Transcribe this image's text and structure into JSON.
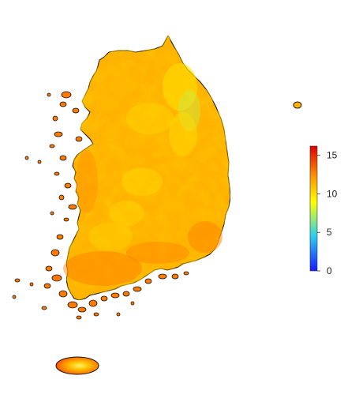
{
  "legend": {
    "ticks": [
      {
        "value": 15,
        "label": "15"
      },
      {
        "value": 10,
        "label": "10"
      },
      {
        "value": 5,
        "label": "5"
      },
      {
        "value": 0,
        "label": "0"
      }
    ],
    "min": 0,
    "max": 16.2,
    "colors": [
      "#1a1aff",
      "#2ad0f0",
      "#ffff00",
      "#ff9900",
      "#dd0000"
    ]
  },
  "map": {
    "land_color": "#ffb300",
    "outline_color": "#111111",
    "warm_color": "#ff7a00",
    "cool_color": "#ffe100",
    "coolest_color": "#c8ec4a"
  }
}
